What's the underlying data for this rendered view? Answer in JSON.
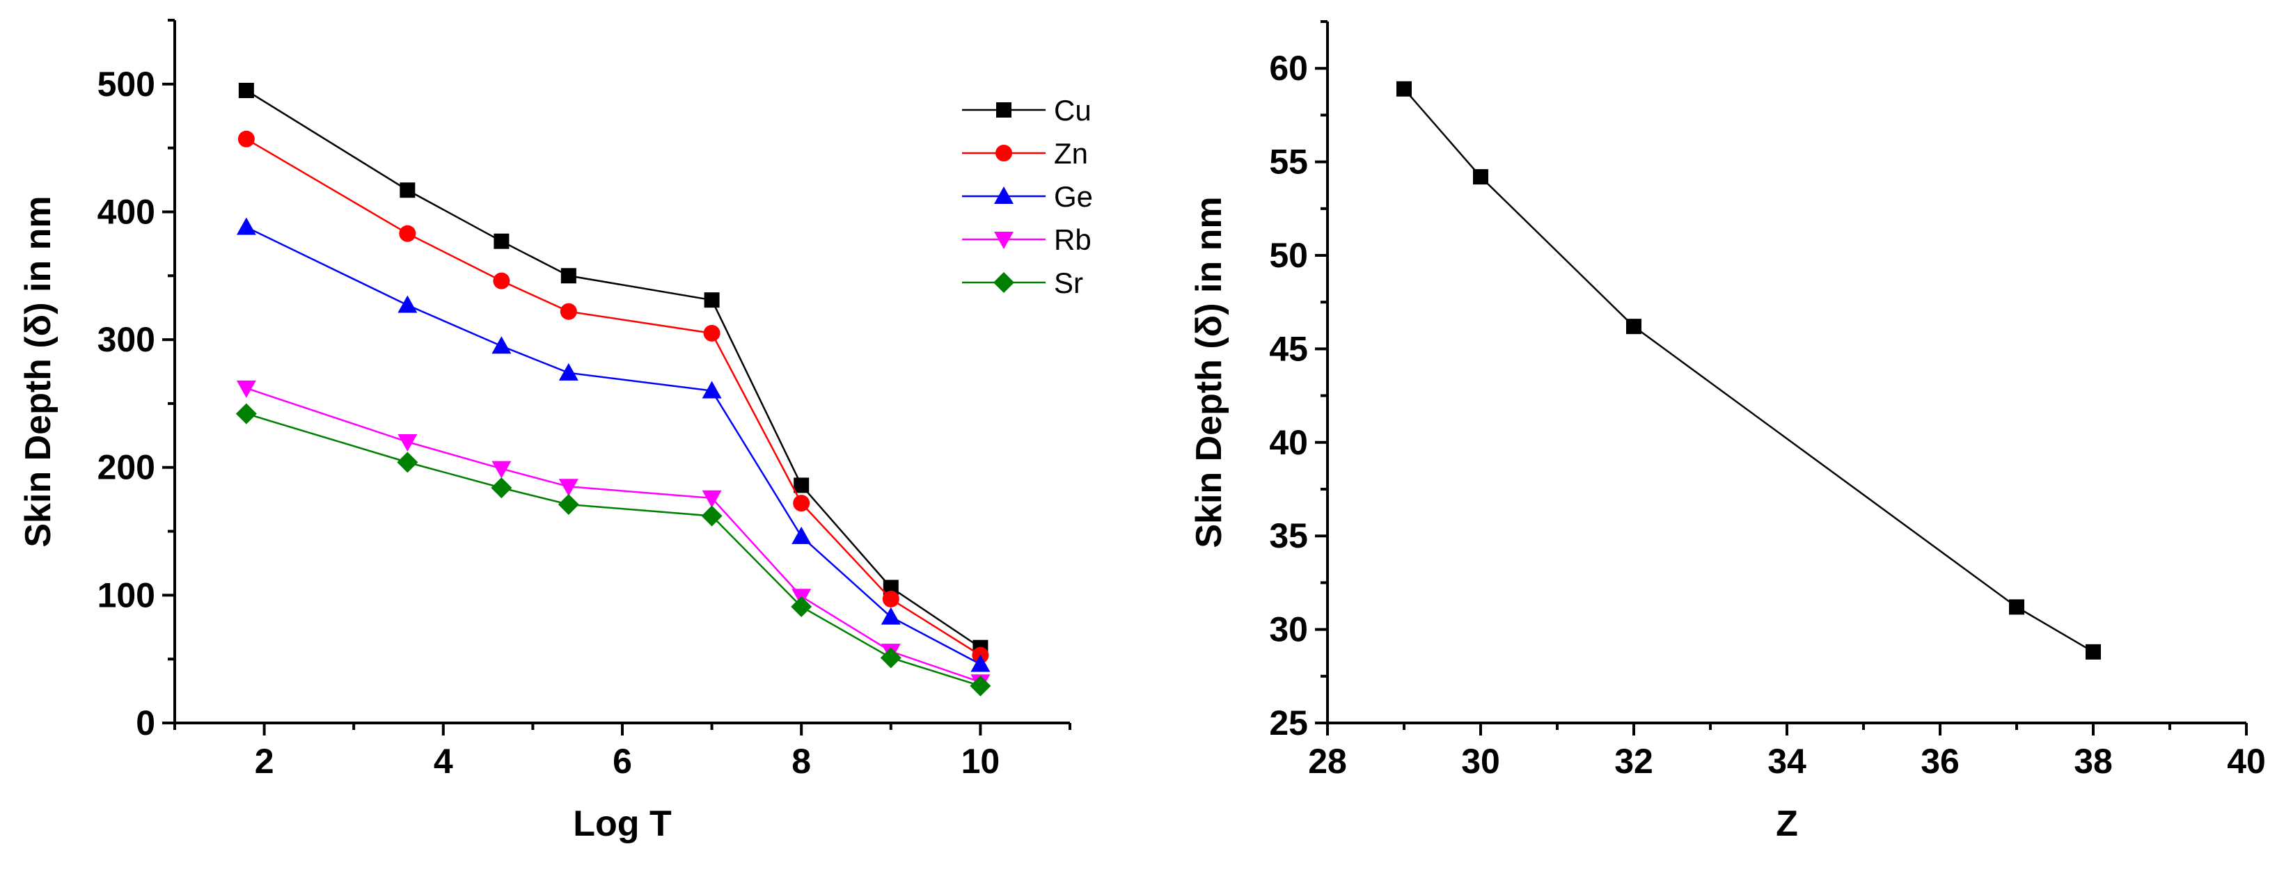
{
  "chart_data": [
    {
      "type": "line",
      "title": "",
      "xlabel": "Log T",
      "ylabel": "Skin Depth (δ) in nm",
      "xlim": [
        1,
        11
      ],
      "ylim": [
        0,
        550
      ],
      "xticks": [
        2,
        4,
        6,
        8,
        10
      ],
      "yticks": [
        0,
        100,
        200,
        300,
        400,
        500
      ],
      "x": [
        1.8,
        3.6,
        4.65,
        5.4,
        7.0,
        8.0,
        9.0,
        10.0
      ],
      "legend_position": "top-right",
      "series": [
        {
          "name": "Cu",
          "color": "#000000",
          "marker": "square",
          "values": [
            495,
            417,
            377,
            350,
            331,
            186,
            106,
            59
          ]
        },
        {
          "name": "Zn",
          "color": "#ff0000",
          "marker": "circle",
          "values": [
            457,
            383,
            346,
            322,
            305,
            172,
            97,
            53
          ]
        },
        {
          "name": "Ge",
          "color": "#0000ff",
          "marker": "triangle-up",
          "values": [
            388,
            327,
            295,
            274,
            260,
            146,
            83,
            46
          ]
        },
        {
          "name": "Rb",
          "color": "#ff00ff",
          "marker": "triangle-down",
          "values": [
            262,
            220,
            199,
            185,
            176,
            99,
            56,
            32
          ]
        },
        {
          "name": "Sr",
          "color": "#008000",
          "marker": "diamond",
          "values": [
            242,
            204,
            184,
            171,
            162,
            91,
            51,
            29
          ]
        }
      ]
    },
    {
      "type": "line",
      "title": "",
      "xlabel": "Z",
      "ylabel": "Skin Depth (δ) in nm",
      "xlim": [
        28,
        40
      ],
      "ylim": [
        25,
        62.5
      ],
      "xticks": [
        28,
        30,
        32,
        34,
        36,
        38,
        40
      ],
      "yticks": [
        25,
        30,
        35,
        40,
        45,
        50,
        55,
        60
      ],
      "x": [
        29,
        30,
        32,
        37,
        38
      ],
      "series": [
        {
          "name": "",
          "color": "#000000",
          "marker": "square",
          "values": [
            58.9,
            54.2,
            46.2,
            31.2,
            28.8
          ]
        }
      ]
    }
  ]
}
